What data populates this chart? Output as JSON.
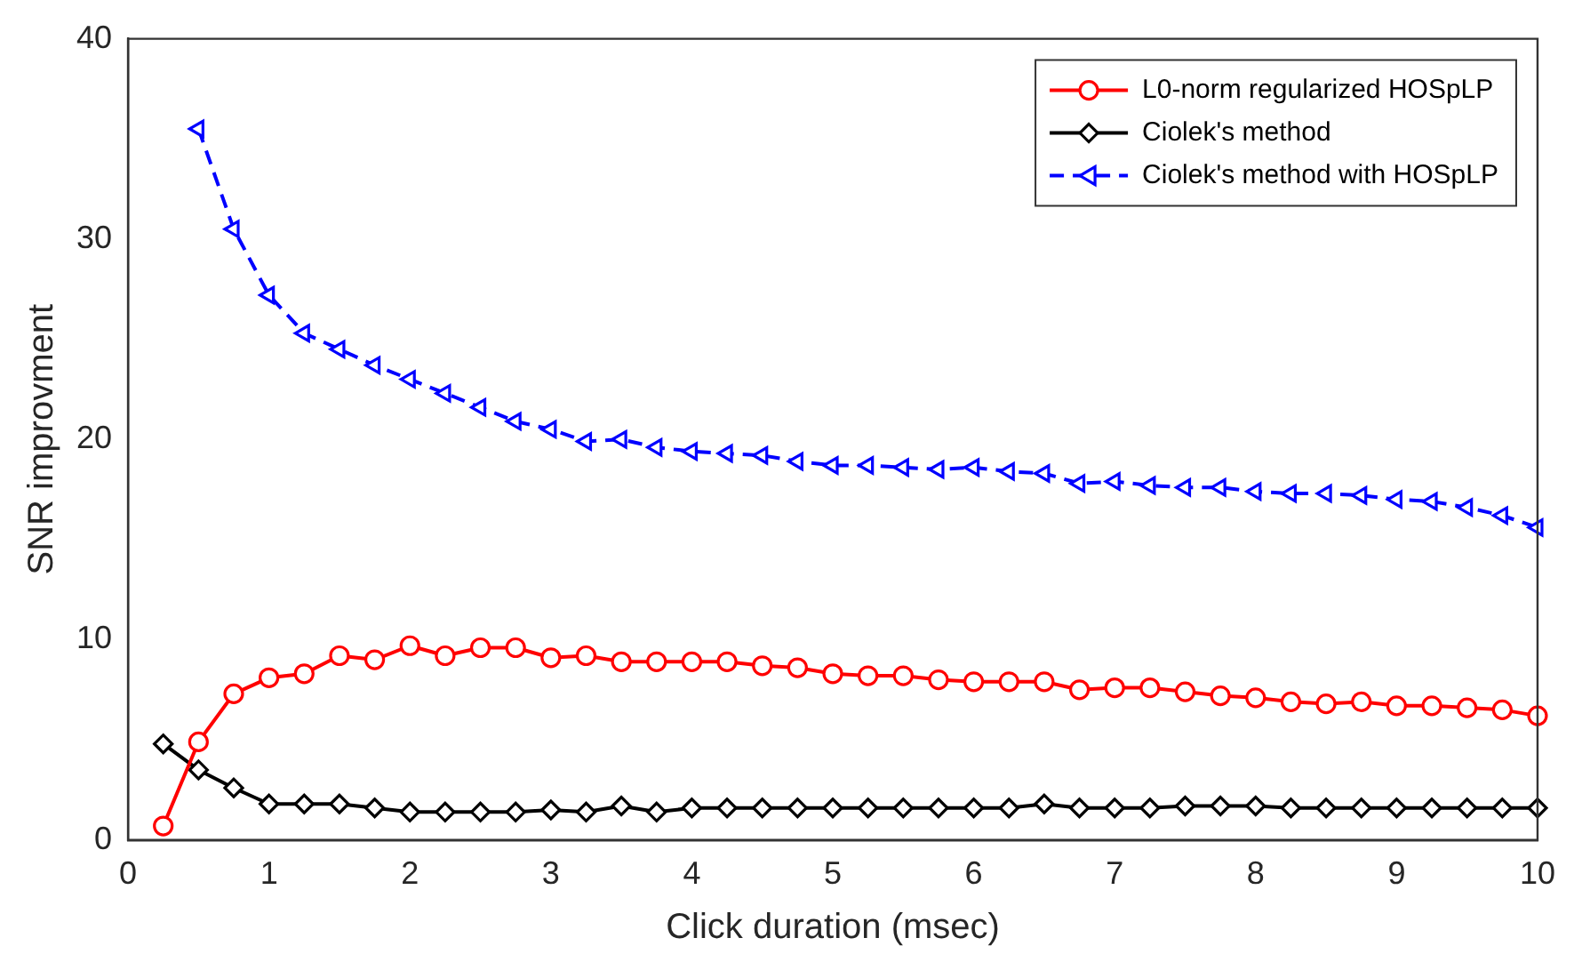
{
  "chart_data": {
    "type": "line",
    "xlabel": "Click duration (msec)",
    "ylabel": "SNR improvment",
    "x": [
      0.25,
      0.5,
      0.75,
      1,
      1.25,
      1.5,
      1.75,
      2,
      2.25,
      2.5,
      2.75,
      3,
      3.25,
      3.5,
      3.75,
      4,
      4.25,
      4.5,
      4.75,
      5,
      5.25,
      5.5,
      5.75,
      6,
      6.25,
      6.5,
      6.75,
      7,
      7.25,
      7.5,
      7.75,
      8,
      8.25,
      8.5,
      8.75,
      9,
      9.25,
      9.5,
      9.75,
      10
    ],
    "xlim": [
      0,
      10
    ],
    "xticks": [
      0,
      1,
      2,
      3,
      4,
      5,
      6,
      7,
      8,
      9,
      10
    ],
    "ylim": [
      0,
      40
    ],
    "yticks": [
      0,
      10,
      20,
      30,
      40
    ],
    "grid": false,
    "legend": "top right",
    "series": [
      {
        "name": "L0-norm regularized HOSpLP",
        "color": "#ff0000",
        "marker": "circle",
        "line_style": "solid",
        "values": [
          0.7,
          4.9,
          7.3,
          8.1,
          8.3,
          9.2,
          9.0,
          9.7,
          9.2,
          9.6,
          9.6,
          9.1,
          9.2,
          8.9,
          8.9,
          8.9,
          8.9,
          8.7,
          8.6,
          8.3,
          8.2,
          8.2,
          8.0,
          7.9,
          7.9,
          7.9,
          7.5,
          7.6,
          7.6,
          7.4,
          7.2,
          7.1,
          6.9,
          6.8,
          6.9,
          6.7,
          6.7,
          6.6,
          6.5,
          6.2
        ]
      },
      {
        "name": "Ciolek's method",
        "color": "#000000",
        "marker": "diamond",
        "line_style": "solid",
        "values": [
          4.8,
          3.5,
          2.6,
          1.8,
          1.8,
          1.8,
          1.6,
          1.4,
          1.4,
          1.4,
          1.4,
          1.5,
          1.4,
          1.7,
          1.4,
          1.6,
          1.6,
          1.6,
          1.6,
          1.6,
          1.6,
          1.6,
          1.6,
          1.6,
          1.6,
          1.8,
          1.6,
          1.6,
          1.6,
          1.7,
          1.7,
          1.7,
          1.6,
          1.6,
          1.6,
          1.6,
          1.6,
          1.6,
          1.6,
          1.6
        ]
      },
      {
        "name": "Ciolek's method with HOSpLP",
        "color": "#0000ff",
        "marker": "triangle",
        "line_style": "dashed",
        "values": [
          null,
          35.5,
          30.5,
          27.2,
          25.3,
          24.5,
          23.7,
          23.0,
          22.3,
          21.6,
          20.9,
          20.5,
          19.9,
          20.0,
          19.6,
          19.4,
          19.3,
          19.2,
          18.9,
          18.7,
          18.7,
          18.6,
          18.5,
          18.6,
          18.4,
          18.3,
          17.8,
          17.9,
          17.7,
          17.6,
          17.6,
          17.4,
          17.3,
          17.3,
          17.2,
          17.0,
          16.9,
          16.6,
          16.2,
          15.6
        ]
      }
    ]
  }
}
